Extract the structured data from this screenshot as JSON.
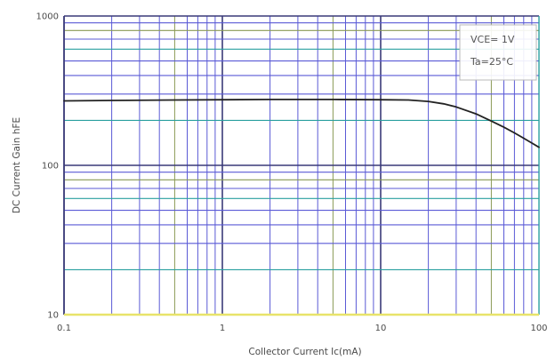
{
  "chart_data": {
    "type": "line",
    "title": "",
    "xlabel": "Collector Current  Ic(mA)",
    "ylabel": "DC Current Gain  hFE",
    "x_scale": "log",
    "y_scale": "log",
    "xlim": [
      0.1,
      100
    ],
    "ylim": [
      10,
      1000
    ],
    "x_ticks": [
      0.1,
      1,
      10,
      100
    ],
    "x_tick_labels": [
      "0.1",
      "1",
      "10",
      "100"
    ],
    "y_ticks": [
      10,
      100,
      1000
    ],
    "y_tick_labels": [
      "10",
      "100",
      "1000"
    ],
    "grid": true,
    "annotations": [
      "VCE= 1V",
      "Ta=25°C"
    ],
    "annotation_position": "top-right",
    "series": [
      {
        "x": [
          0.1,
          0.2,
          0.5,
          1,
          2,
          5,
          10,
          15,
          20,
          25,
          30,
          40,
          50,
          60,
          70,
          80,
          90,
          100
        ],
        "y": [
          270,
          272,
          274,
          275,
          276,
          276,
          275,
          274,
          268,
          258,
          246,
          221,
          198,
          180,
          165,
          152,
          141,
          132
        ]
      }
    ],
    "colors": {
      "line": "#222222",
      "grid_blue": "#5a5ad6",
      "grid_teal": "#2aa0a0",
      "grid_olive": "#8a9a55",
      "grid_yellow": "#e8e36a",
      "grid_navy": "#3a3a78",
      "box": "#b0b0b0"
    }
  }
}
